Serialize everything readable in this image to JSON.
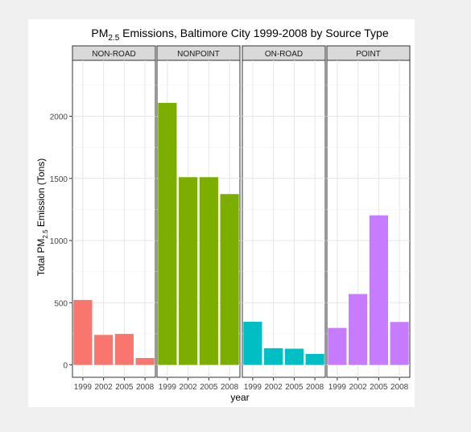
{
  "chart_data": {
    "type": "bar",
    "title_main": "PM",
    "title_sub": "2.5",
    "title_rest": " Emissions, Baltimore City 1999-2008 by Source Type",
    "xlabel": "year",
    "ylabel_main": "Total PM",
    "ylabel_sub": "2.5",
    "ylabel_rest": " Emission (Tons)",
    "ylim": [
      -100,
      2450
    ],
    "yticks": [
      0,
      500,
      1000,
      1500,
      2000
    ],
    "ytick_labels": [
      "0",
      "500",
      "1000",
      "1500",
      "2000"
    ],
    "categories": [
      "1999",
      "2002",
      "2005",
      "2008"
    ],
    "grid": true,
    "facets": [
      {
        "name": "NON-ROAD",
        "color": "#F8766D",
        "values": [
          522,
          241,
          249,
          55
        ]
      },
      {
        "name": "NONPOINT",
        "color": "#7CAE00",
        "values": [
          2108,
          1510,
          1510,
          1374
        ]
      },
      {
        "name": "ON-ROAD",
        "color": "#00BFC4",
        "values": [
          347,
          134,
          130,
          88
        ]
      },
      {
        "name": "POINT",
        "color": "#C77CFF",
        "values": [
          297,
          570,
          1203,
          345
        ]
      }
    ]
  }
}
